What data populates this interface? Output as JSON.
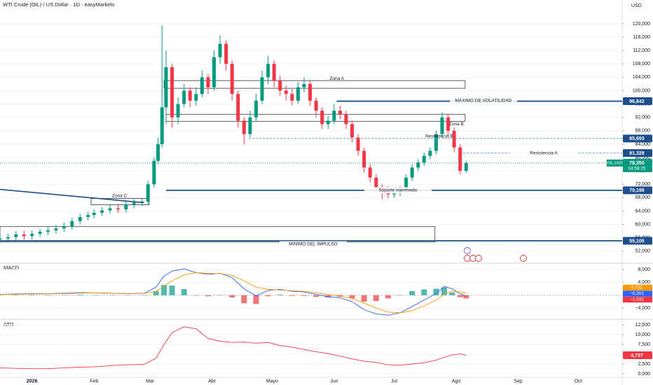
{
  "chart_data": [
    {
      "type": "candlestick",
      "title": "WTI Crude (OIL) / US Dollar · 1D · easyMarkets",
      "currency": "USD",
      "up_color": "#089981",
      "down_color": "#f23645",
      "xlim": [
        -16,
        295
      ],
      "ylim": [
        48400,
        127100
      ],
      "yticks": [
        {
          "value": 52000,
          "label": "52,000"
        },
        {
          "value": 56000,
          "label": "56,000"
        },
        {
          "value": 60000,
          "label": "60,000"
        },
        {
          "value": 64000,
          "label": "64,000"
        },
        {
          "value": 68000,
          "label": "68,000"
        },
        {
          "value": 72000,
          "label": "72,000"
        },
        {
          "value": 76000,
          "label": "76,000"
        },
        {
          "value": 80000,
          "label": "80,000"
        },
        {
          "value": 84000,
          "label": "84,000"
        },
        {
          "value": 88000,
          "label": "88,000"
        },
        {
          "value": 92000,
          "label": "92,000"
        },
        {
          "value": 96000,
          "label": "96,000"
        },
        {
          "value": 100000,
          "label": "100,000"
        },
        {
          "value": 104000,
          "label": "104,000"
        },
        {
          "value": 108000,
          "label": "108,000"
        },
        {
          "value": 112000,
          "label": "112,000"
        },
        {
          "value": 116000,
          "label": "116,000"
        },
        {
          "value": 120000,
          "label": "120,000"
        }
      ],
      "x": [
        -16,
        -12,
        -8,
        -4,
        0,
        4,
        8,
        12,
        16,
        20,
        24,
        28,
        31,
        35,
        39,
        43,
        47,
        51,
        55,
        58,
        61,
        63,
        65,
        67,
        70,
        73,
        76,
        79,
        82,
        85,
        88,
        91,
        94,
        97,
        100,
        103,
        106,
        109,
        112,
        115,
        118,
        121,
        124,
        127,
        130,
        133,
        136,
        139,
        142,
        145,
        148,
        151,
        154,
        157,
        160,
        163,
        166,
        169,
        172,
        175,
        178,
        181,
        184,
        187,
        190,
        193,
        196,
        199,
        202,
        205,
        208,
        211,
        214,
        217
      ],
      "open": [
        55500,
        55800,
        56200,
        57000,
        56500,
        57200,
        57800,
        58200,
        58800,
        59500,
        61000,
        62200,
        62800,
        63500,
        64200,
        64800,
        64500,
        65800,
        66500,
        66800,
        72000,
        79000,
        84000,
        95000,
        107000,
        92000,
        96000,
        100000,
        97000,
        99000,
        104000,
        101000,
        110000,
        114000,
        108000,
        99000,
        91000,
        87000,
        92000,
        97000,
        104000,
        108000,
        103000,
        100000,
        99000,
        97000,
        101000,
        102000,
        97000,
        94000,
        90000,
        91000,
        94000,
        93000,
        90000,
        86000,
        82000,
        77000,
        74000,
        71000,
        70500,
        69000,
        69500,
        70500,
        74000,
        77000,
        78500,
        80500,
        82000,
        87000,
        92000,
        88000,
        83000,
        76000
      ],
      "high": [
        56800,
        57200,
        58000,
        58000,
        58200,
        58800,
        59200,
        59800,
        60500,
        62000,
        63200,
        63800,
        64500,
        65200,
        65800,
        65800,
        66800,
        67500,
        67800,
        73000,
        80000,
        86000,
        119500,
        112000,
        108000,
        98000,
        102000,
        101000,
        101000,
        106000,
        105000,
        112000,
        116500,
        115000,
        109000,
        100000,
        92000,
        94000,
        99000,
        106000,
        110500,
        109000,
        104500,
        101500,
        100500,
        102500,
        104000,
        103000,
        98000,
        95000,
        92500,
        96000,
        95500,
        94000,
        91000,
        87000,
        83000,
        78000,
        75000,
        72000,
        71500,
        70500,
        71500,
        75000,
        78000,
        79500,
        81500,
        83000,
        88000,
        93500,
        93000,
        89000,
        84000,
        79000
      ],
      "low": [
        54500,
        54800,
        55200,
        55500,
        55500,
        56200,
        56800,
        57200,
        57800,
        58500,
        60000,
        61200,
        61800,
        62500,
        63200,
        63500,
        63500,
        64800,
        65500,
        65800,
        71000,
        78000,
        83000,
        90000,
        89000,
        90000,
        95000,
        95000,
        95500,
        98000,
        99000,
        100000,
        108000,
        106000,
        97000,
        89000,
        84000,
        86000,
        91000,
        96000,
        102000,
        101000,
        98500,
        97000,
        95500,
        96000,
        99500,
        95500,
        92000,
        88500,
        88500,
        90000,
        91500,
        88500,
        84500,
        80500,
        75500,
        72500,
        69500,
        67500,
        67800,
        68000,
        68500,
        69500,
        73000,
        76000,
        77500,
        79500,
        81000,
        86000,
        86500,
        81500,
        75000,
        75500
      ],
      "close": [
        55800,
        56200,
        57000,
        56500,
        57200,
        57800,
        58200,
        58800,
        59500,
        61000,
        62200,
        62800,
        63500,
        64200,
        64800,
        64500,
        65800,
        66500,
        66800,
        72000,
        79000,
        84000,
        95000,
        107000,
        92000,
        96000,
        100000,
        97000,
        99000,
        104000,
        101000,
        110000,
        114000,
        108000,
        99000,
        91000,
        87000,
        92000,
        97000,
        104000,
        108000,
        103000,
        100000,
        99000,
        97000,
        101000,
        102000,
        97000,
        94000,
        90000,
        91000,
        94000,
        93000,
        90000,
        86000,
        82000,
        77000,
        74000,
        71000,
        70500,
        69000,
        69500,
        70500,
        74000,
        77000,
        78500,
        80500,
        82000,
        87000,
        92000,
        88000,
        83000,
        76000,
        78350
      ],
      "zones": [
        {
          "name": "Zona A",
          "x0": 66,
          "x1": 216.5,
          "low": 100700,
          "high": 103000
        },
        {
          "name": "Zona B",
          "x0": 67,
          "x1": 216.5,
          "low": 90830,
          "high": 92930
        },
        {
          "name": "Zona C",
          "x0": 29.5,
          "x1": 58.6,
          "low": 65850,
          "high": 67740
        },
        {
          "x0": -16,
          "x1": 201.4,
          "low": 54730,
          "high": 59345
        }
      ],
      "levels": [
        {
          "name": "MÁXIMO DE VOLATILIDAD",
          "value": 96842,
          "value_label": "96,842",
          "x0": 152.3,
          "color": "#1c4f8c",
          "dashed": false
        },
        {
          "name": "Resistencia B",
          "value": 85693,
          "value_label": "85,693",
          "x0": 108.4,
          "color": "#5b8fc7",
          "dashed": true
        },
        {
          "name": "Resistencia A",
          "value": 81328,
          "value_label": "81,328",
          "x0": 215.4,
          "color": "#5b8fc7",
          "dashed": true
        },
        {
          "name": "Soporte Intermedio",
          "value": 70198,
          "value_label": "70,198",
          "x0": 67,
          "color": "#1c4f8c",
          "dashed": false
        },
        {
          "name": "MINIMO DEL IMPULSO",
          "value": 55105,
          "value_label": "55,105",
          "x0": -16,
          "color": "#1c4f8c",
          "dashed": false
        }
      ],
      "trendline": {
        "x": [
          -16,
          56
        ],
        "values": [
          70470,
          66480
        ],
        "color": "#1c4f8c"
      },
      "last": {
        "symbol": "OIL.USD",
        "value": 78350,
        "value_label": "78,350",
        "countdown": "04:58:25",
        "color": "#089981"
      }
    },
    {
      "type": "macd",
      "title": "MACD",
      "xlim": [
        -16,
        295
      ],
      "ylim": [
        -7450,
        9950
      ],
      "yticks": [
        {
          "value": -4000,
          "label": "−4,000"
        },
        {
          "value": 4000,
          "label": "4,000"
        },
        {
          "value": 8000,
          "label": "8,000"
        }
      ],
      "x": [
        -16,
        -8,
        0,
        8,
        16,
        24,
        32,
        40,
        48,
        56,
        62,
        66,
        70,
        76,
        82,
        88,
        94,
        100,
        106,
        112,
        118,
        124,
        130,
        136,
        142,
        148,
        154,
        160,
        166,
        172,
        178,
        184,
        190,
        196,
        202,
        206,
        210,
        214,
        217
      ],
      "series": [
        {
          "kind": "bar",
          "color": "#26a69a",
          "neg_color": "#ef5350",
          "values": [
            50,
            100,
            100,
            50,
            100,
            150,
            0,
            -50,
            -50,
            50,
            1300,
            3200,
            3000,
            1900,
            0,
            -300,
            100,
            -700,
            -2500,
            -2700,
            -300,
            200,
            -200,
            -200,
            -500,
            -700,
            -500,
            -1000,
            -2000,
            -1800,
            -1000,
            0,
            1300,
            1800,
            2000,
            2400,
            800,
            -600,
            -1000
          ]
        },
        {
          "kind": "line",
          "color": "#2962ff",
          "values": [
            300,
            400,
            500,
            500,
            600,
            800,
            700,
            600,
            500,
            600,
            2500,
            6000,
            7500,
            8200,
            7000,
            6500,
            6800,
            5500,
            2000,
            -200,
            1500,
            1800,
            1200,
            1000,
            300,
            -500,
            -800,
            -2000,
            -4500,
            -5800,
            -6200,
            -5500,
            -3500,
            -1500,
            500,
            2700,
            2000,
            400,
            -300
          ]
        },
        {
          "kind": "line",
          "color": "#ff9800",
          "values": [
            250,
            300,
            400,
            450,
            500,
            650,
            700,
            650,
            550,
            550,
            1200,
            2800,
            4500,
            6300,
            7000,
            6800,
            6700,
            6200,
            4500,
            2500,
            1800,
            1600,
            1400,
            1200,
            800,
            200,
            -300,
            -1000,
            -2500,
            -4000,
            -5200,
            -5500,
            -4800,
            -3300,
            -1500,
            300,
            1200,
            1000,
            700
          ]
        }
      ],
      "last_labels": [
        {
          "label": "0,731",
          "color": "#ff9800"
        },
        {
          "label": "−0,301",
          "color": "#2962ff"
        },
        {
          "label": "−1,032",
          "color": "#f23645"
        }
      ]
    },
    {
      "type": "line",
      "title": "ATR",
      "xlim": [
        -16,
        295
      ],
      "ylim": [
        -714,
        13930
      ],
      "color": "#f23645",
      "yticks": [
        {
          "value": 0,
          "label": "0,000"
        },
        {
          "value": 2500,
          "label": "2,500"
        },
        {
          "value": 5000,
          "label": "5,000"
        },
        {
          "value": 7500,
          "label": "7,500"
        },
        {
          "value": 10000,
          "label": "10,000"
        },
        {
          "value": 12500,
          "label": "12,500"
        }
      ],
      "x": [
        -16,
        -8,
        0,
        8,
        16,
        24,
        32,
        40,
        48,
        56,
        62,
        66,
        70,
        76,
        82,
        88,
        94,
        100,
        106,
        112,
        118,
        124,
        130,
        136,
        142,
        148,
        154,
        160,
        166,
        172,
        178,
        184,
        190,
        196,
        202,
        206,
        210,
        214,
        217
      ],
      "values": [
        1500,
        1400,
        1300,
        1300,
        1500,
        1700,
        1800,
        2100,
        2300,
        2400,
        4000,
        7500,
        10500,
        12000,
        11500,
        9000,
        8300,
        8000,
        8100,
        7800,
        8000,
        7200,
        6800,
        6200,
        5600,
        5200,
        4500,
        3800,
        3200,
        2900,
        2300,
        2200,
        2500,
        2800,
        3500,
        4200,
        4800,
        5100,
        4737
      ],
      "last_label": "4,737",
      "xticks": [
        {
          "value": 0,
          "label": "2026"
        },
        {
          "value": 31,
          "label": "Feb"
        },
        {
          "value": 59,
          "label": "Mar"
        },
        {
          "value": 90,
          "label": "Abr"
        },
        {
          "value": 120,
          "label": "Mayo"
        },
        {
          "value": 151,
          "label": "Jun"
        },
        {
          "value": 181,
          "label": "Jul"
        },
        {
          "value": 212,
          "label": "Ago"
        },
        {
          "value": 243,
          "label": "Sep"
        },
        {
          "value": 273,
          "label": "Oct"
        }
      ]
    }
  ]
}
